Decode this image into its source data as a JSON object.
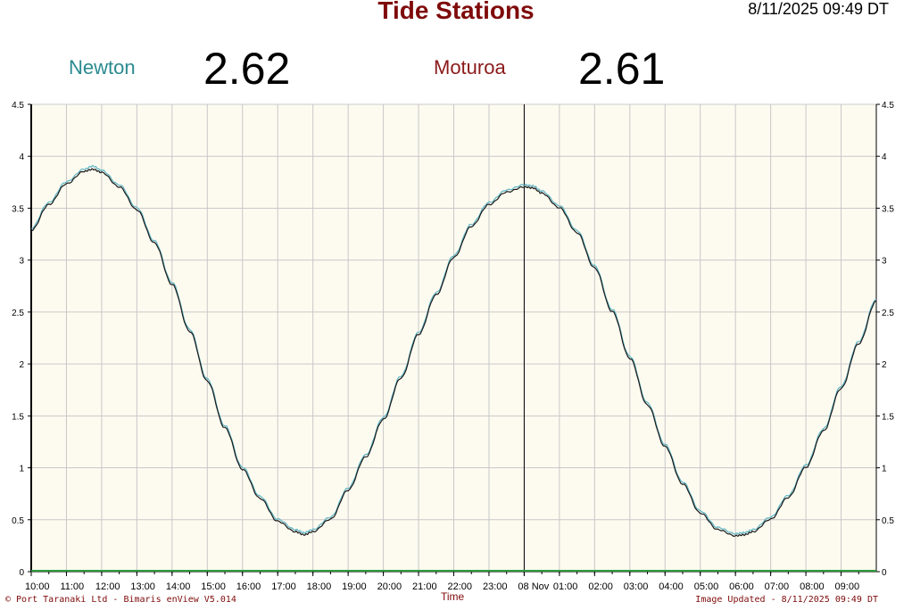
{
  "header": {
    "title": "Tide Stations",
    "datetime": "8/11/2025 09:49 DT"
  },
  "stations": [
    {
      "name": "Newton",
      "value": "2.62",
      "color": "#2a8a8f"
    },
    {
      "name": "Moturoa",
      "value": "2.61",
      "color": "#8b1a1a"
    }
  ],
  "footer": {
    "left": "© Port Taranaki Ltd - Bimaris enView V5.014",
    "right": "Image Updated - 8/11/2025 09:49 DT"
  },
  "chart_data": {
    "type": "line",
    "xlabel": "Time",
    "ylabel": "",
    "ylim": [
      0,
      4.5
    ],
    "xlim": [
      10,
      34
    ],
    "y_ticks": [
      "0",
      "0.5",
      "1",
      "1.5",
      "2",
      "2.5",
      "3",
      "3.5",
      "4",
      "4.5"
    ],
    "x_ticks": [
      "10:00",
      "11:00",
      "12:00",
      "13:00",
      "14:00",
      "15:00",
      "16:00",
      "17:00",
      "18:00",
      "19:00",
      "20:00",
      "21:00",
      "22:00",
      "23:00",
      "08 Nov",
      "01:00",
      "02:00",
      "03:00",
      "04:00",
      "05:00",
      "06:00",
      "07:00",
      "08:00",
      "09:00"
    ],
    "grid": true,
    "day_marker_x": 24,
    "background": "#fdfbf0",
    "series": [
      {
        "name": "Newton",
        "color": "#5fb4c4",
        "x": [
          10,
          10.5,
          11,
          11.5,
          11.75,
          12,
          12.5,
          13,
          13.5,
          14,
          14.5,
          15,
          15.5,
          16,
          16.5,
          17,
          17.5,
          17.75,
          18,
          18.5,
          19,
          19.5,
          20,
          20.5,
          21,
          21.5,
          22,
          22.5,
          23,
          23.5,
          24,
          24.25,
          24.5,
          25,
          25.5,
          26,
          26.5,
          27,
          27.5,
          28,
          28.5,
          29,
          29.5,
          30,
          30.25,
          30.5,
          31,
          31.5,
          32,
          32.5,
          33,
          33.5,
          34
        ],
        "y": [
          3.3,
          3.55,
          3.75,
          3.87,
          3.9,
          3.86,
          3.72,
          3.5,
          3.18,
          2.78,
          2.33,
          1.85,
          1.4,
          1.0,
          0.72,
          0.5,
          0.4,
          0.37,
          0.4,
          0.52,
          0.8,
          1.12,
          1.48,
          1.88,
          2.3,
          2.68,
          3.04,
          3.34,
          3.55,
          3.67,
          3.72,
          3.71,
          3.66,
          3.52,
          3.28,
          2.94,
          2.52,
          2.07,
          1.62,
          1.22,
          0.86,
          0.58,
          0.42,
          0.36,
          0.37,
          0.4,
          0.52,
          0.73,
          1.02,
          1.37,
          1.78,
          2.21,
          2.62
        ]
      },
      {
        "name": "Moturoa",
        "color": "#1a1a1a",
        "x": [
          10,
          10.5,
          11,
          11.5,
          11.75,
          12,
          12.5,
          13,
          13.5,
          14,
          14.5,
          15,
          15.5,
          16,
          16.5,
          17,
          17.5,
          17.75,
          18,
          18.5,
          19,
          19.5,
          20,
          20.5,
          21,
          21.5,
          22,
          22.5,
          23,
          23.5,
          24,
          24.25,
          24.5,
          25,
          25.5,
          26,
          26.5,
          27,
          27.5,
          28,
          28.5,
          29,
          29.5,
          30,
          30.25,
          30.5,
          31,
          31.5,
          32,
          32.5,
          33,
          33.5,
          34
        ],
        "y": [
          3.29,
          3.54,
          3.74,
          3.86,
          3.88,
          3.85,
          3.71,
          3.49,
          3.17,
          2.77,
          2.32,
          1.84,
          1.39,
          0.99,
          0.71,
          0.49,
          0.39,
          0.36,
          0.39,
          0.51,
          0.79,
          1.11,
          1.47,
          1.87,
          2.29,
          2.67,
          3.03,
          3.33,
          3.54,
          3.66,
          3.71,
          3.7,
          3.65,
          3.51,
          3.27,
          2.93,
          2.51,
          2.06,
          1.61,
          1.21,
          0.85,
          0.57,
          0.41,
          0.35,
          0.36,
          0.39,
          0.51,
          0.72,
          1.01,
          1.36,
          1.77,
          2.2,
          2.61
        ]
      }
    ]
  }
}
